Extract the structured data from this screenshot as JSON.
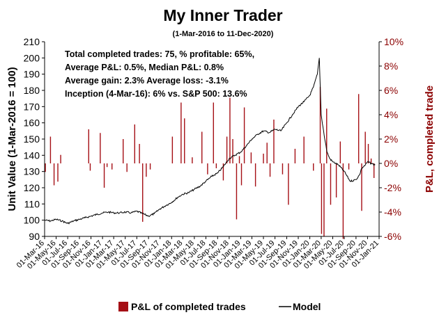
{
  "chart_data": {
    "type": "line",
    "title": "My Inner Trader",
    "subtitle": "(1-Mar-2016 to 11-Dec-2020)",
    "ylabel": "Unit Value (1-Mar-2016 = 100)",
    "y2label": "P&L, completed trade",
    "ylim": [
      90,
      210
    ],
    "yticks": [
      90,
      100,
      110,
      120,
      130,
      140,
      150,
      160,
      170,
      180,
      190,
      200,
      210
    ],
    "y2lim": [
      -6,
      10
    ],
    "y2ticks": [
      "-6%",
      "-4%",
      "-2%",
      "0%",
      "2%",
      "4%",
      "6%",
      "8%",
      "10%"
    ],
    "y2tick_values": [
      -6,
      -4,
      -2,
      0,
      2,
      4,
      6,
      8,
      10
    ],
    "x_start": "2016-03-01",
    "x_end": "2021-01-01",
    "xticks": [
      "01-Mar-16",
      "01-May-16",
      "01-Jul-16",
      "01-Sep-16",
      "01-Nov-16",
      "01-Jan-17",
      "01-Mar-17",
      "01-May-17",
      "01-Jul-17",
      "01-Sep-17",
      "01-Nov-17",
      "01-Jan-18",
      "01-Mar-18",
      "01-May-18",
      "01-Jul-18",
      "01-Sep-18",
      "01-Nov-18",
      "01-Jan-19",
      "01-Mar-19",
      "01-May-19",
      "01-Jul-19",
      "01-Sep-19",
      "01-Nov-19",
      "01-Jan-20",
      "01-Mar-20",
      "01-May-20",
      "01-Jul-20",
      "01-Sep-20",
      "01-Nov-20",
      "01-Jan-21"
    ],
    "xtick_dates": [
      "2016-03-01",
      "2016-05-01",
      "2016-07-01",
      "2016-09-01",
      "2016-11-01",
      "2017-01-01",
      "2017-03-01",
      "2017-05-01",
      "2017-07-01",
      "2017-09-01",
      "2017-11-01",
      "2018-01-01",
      "2018-03-01",
      "2018-05-01",
      "2018-07-01",
      "2018-09-01",
      "2018-11-01",
      "2019-01-01",
      "2019-03-01",
      "2019-05-01",
      "2019-07-01",
      "2019-09-01",
      "2019-11-01",
      "2020-01-01",
      "2020-03-01",
      "2020-05-01",
      "2020-07-01",
      "2020-09-01",
      "2020-11-01",
      "2021-01-01"
    ],
    "annotations": [
      "Total completed trades: 75, % profitable: 65%,",
      "Average P&L: 0.5%, Median P&L: 0.8%",
      "Average gain: 2.3% Average loss: -3.1%",
      "Inception (4-Mar-16): 6% vs. S&P 500: 13.6%"
    ],
    "legend": {
      "position": "bottom",
      "items": [
        {
          "label": "P&L of completed trades",
          "kind": "bar"
        },
        {
          "label": "Model",
          "kind": "line"
        }
      ]
    },
    "colors": {
      "bars": "#a50f15",
      "line": "#000000",
      "y2axis": "#8b0000"
    },
    "series": [
      {
        "name": "Model",
        "axis": "left",
        "type": "line",
        "points": [
          [
            "2016-03-01",
            100
          ],
          [
            "2016-04-01",
            99.5
          ],
          [
            "2016-05-01",
            100.5
          ],
          [
            "2016-06-01",
            99.5
          ],
          [
            "2016-07-01",
            98
          ],
          [
            "2016-08-01",
            99.5
          ],
          [
            "2016-09-01",
            100.5
          ],
          [
            "2016-10-01",
            101.5
          ],
          [
            "2016-11-01",
            102.5
          ],
          [
            "2016-12-01",
            103.5
          ],
          [
            "2017-01-01",
            104.5
          ],
          [
            "2017-02-01",
            105
          ],
          [
            "2017-03-01",
            104.5
          ],
          [
            "2017-04-01",
            104.5
          ],
          [
            "2017-05-01",
            105
          ],
          [
            "2017-06-01",
            104.5
          ],
          [
            "2017-07-01",
            105.5
          ],
          [
            "2017-08-01",
            104
          ],
          [
            "2017-09-01",
            102.5
          ],
          [
            "2017-10-01",
            104
          ],
          [
            "2017-11-01",
            107
          ],
          [
            "2017-12-01",
            109
          ],
          [
            "2018-01-01",
            111
          ],
          [
            "2018-02-01",
            114
          ],
          [
            "2018-03-01",
            116
          ],
          [
            "2018-04-01",
            117
          ],
          [
            "2018-05-01",
            119
          ],
          [
            "2018-06-01",
            121
          ],
          [
            "2018-07-01",
            124
          ],
          [
            "2018-08-01",
            127
          ],
          [
            "2018-09-01",
            129
          ],
          [
            "2018-10-01",
            133
          ],
          [
            "2018-11-01",
            138
          ],
          [
            "2018-12-01",
            140
          ],
          [
            "2019-01-01",
            142
          ],
          [
            "2019-02-01",
            146
          ],
          [
            "2019-03-01",
            150
          ],
          [
            "2019-04-01",
            153
          ],
          [
            "2019-05-01",
            155
          ],
          [
            "2019-06-01",
            154
          ],
          [
            "2019-07-01",
            156
          ],
          [
            "2019-08-01",
            155
          ],
          [
            "2019-09-01",
            160
          ],
          [
            "2019-10-01",
            165
          ],
          [
            "2019-11-01",
            170
          ],
          [
            "2019-12-01",
            173
          ],
          [
            "2020-01-01",
            177
          ],
          [
            "2020-01-20",
            182
          ],
          [
            "2020-02-10",
            190
          ],
          [
            "2020-02-20",
            200
          ],
          [
            "2020-03-01",
            165
          ],
          [
            "2020-03-20",
            150
          ],
          [
            "2020-04-01",
            142
          ],
          [
            "2020-04-15",
            138
          ],
          [
            "2020-05-01",
            136
          ],
          [
            "2020-06-01",
            134
          ],
          [
            "2020-07-01",
            130
          ],
          [
            "2020-08-01",
            124
          ],
          [
            "2020-09-01",
            125
          ],
          [
            "2020-09-20",
            128
          ],
          [
            "2020-10-01",
            132
          ],
          [
            "2020-10-20",
            134
          ],
          [
            "2020-11-01",
            136
          ],
          [
            "2020-11-20",
            135
          ],
          [
            "2020-12-11",
            134
          ]
        ]
      },
      {
        "name": "P&L of completed trades",
        "axis": "right",
        "type": "bar",
        "points": [
          [
            "2016-03-05",
            -0.7
          ],
          [
            "2016-04-01",
            2.2
          ],
          [
            "2016-04-20",
            -1.8
          ],
          [
            "2016-05-10",
            -1.5
          ],
          [
            "2016-05-25",
            0.7
          ],
          [
            "2016-10-20",
            2.8
          ],
          [
            "2016-10-28",
            -0.6
          ],
          [
            "2016-12-20",
            2.5
          ],
          [
            "2017-01-10",
            -2
          ],
          [
            "2017-01-25",
            -0.3
          ],
          [
            "2017-02-20",
            -0.5
          ],
          [
            "2017-04-20",
            2.0
          ],
          [
            "2017-05-10",
            -0.7
          ],
          [
            "2017-06-20",
            3.2
          ],
          [
            "2017-07-15",
            1.6
          ],
          [
            "2017-08-01",
            -4.8
          ],
          [
            "2017-08-20",
            -1.1
          ],
          [
            "2017-09-10",
            -0.5
          ],
          [
            "2018-01-05",
            2.2
          ],
          [
            "2018-02-20",
            5.0
          ],
          [
            "2018-03-10",
            3.7
          ],
          [
            "2018-04-20",
            0.5
          ],
          [
            "2018-06-10",
            2.6
          ],
          [
            "2018-07-10",
            -0.9
          ],
          [
            "2018-08-10",
            5.0
          ],
          [
            "2018-08-25",
            -0.4
          ],
          [
            "2018-10-01",
            -1.4
          ],
          [
            "2018-10-20",
            2.2
          ],
          [
            "2018-11-05",
            5.4
          ],
          [
            "2018-11-20",
            2.0
          ],
          [
            "2018-12-10",
            -4.6
          ],
          [
            "2018-12-25",
            0.6
          ],
          [
            "2019-01-05",
            -1.8
          ],
          [
            "2019-01-20",
            4.6
          ],
          [
            "2019-02-25",
            0.9
          ],
          [
            "2019-03-20",
            -1.9
          ],
          [
            "2019-05-01",
            0.8
          ],
          [
            "2019-05-20",
            1.7
          ],
          [
            "2019-06-05",
            -1.1
          ],
          [
            "2019-06-25",
            3.6
          ],
          [
            "2019-08-10",
            -0.9
          ],
          [
            "2019-09-10",
            -3.4
          ],
          [
            "2019-10-15",
            1.2
          ],
          [
            "2019-12-01",
            2.2
          ],
          [
            "2020-01-20",
            -0.6
          ],
          [
            "2020-02-25",
            6.3
          ],
          [
            "2020-03-03",
            -5.8
          ],
          [
            "2020-03-16",
            -6
          ],
          [
            "2020-03-30",
            4.5
          ],
          [
            "2020-04-20",
            -3.4
          ],
          [
            "2020-05-20",
            -2.8
          ],
          [
            "2020-06-10",
            1.8
          ],
          [
            "2020-06-25",
            -6.2
          ],
          [
            "2020-07-25",
            -0.5
          ],
          [
            "2020-09-15",
            5.7
          ],
          [
            "2020-10-01",
            -3.9
          ],
          [
            "2020-10-20",
            2.6
          ],
          [
            "2020-11-05",
            1.6
          ],
          [
            "2020-11-20",
            0.4
          ],
          [
            "2020-12-05",
            -1.2
          ]
        ]
      }
    ]
  }
}
